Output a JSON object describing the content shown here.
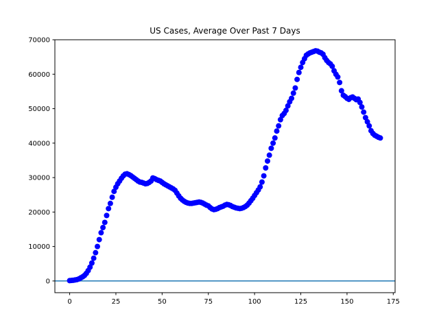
{
  "chart_data": {
    "type": "scatter",
    "title": "US Cases, Average Over Past 7 Days",
    "xlabel": "",
    "ylabel": "",
    "xlim": [
      -8,
      176
    ],
    "ylim": [
      -3400,
      70000
    ],
    "xticks": [
      0,
      25,
      50,
      75,
      100,
      125,
      150,
      175
    ],
    "yticks": [
      0,
      10000,
      20000,
      30000,
      40000,
      50000,
      60000,
      70000
    ],
    "grid": false,
    "marker_color": "#0000ff",
    "baseline": {
      "y": 0,
      "color": "#1f77b4"
    },
    "series": [
      {
        "x": [
          0,
          1,
          2,
          3,
          4,
          5,
          6,
          7,
          8,
          9,
          10,
          11,
          12,
          13,
          14,
          15,
          16,
          17,
          18,
          19,
          20,
          21,
          22,
          23,
          24,
          25,
          26,
          27,
          28,
          29,
          30,
          31,
          32,
          33,
          34,
          35,
          36,
          37,
          38,
          39,
          40,
          41,
          42,
          43,
          44,
          45,
          46,
          47,
          48,
          49,
          50,
          51,
          52,
          53,
          54,
          55,
          56,
          57,
          58,
          59,
          60,
          61,
          62,
          63,
          64,
          65,
          66,
          67,
          68,
          69,
          70,
          71,
          72,
          73,
          74,
          75,
          76,
          77,
          78,
          79,
          80,
          81,
          82,
          83,
          84,
          85,
          86,
          87,
          88,
          89,
          90,
          91,
          92,
          93,
          94,
          95,
          96,
          97,
          98,
          99,
          100,
          101,
          102,
          103,
          104,
          105,
          106,
          107,
          108,
          109,
          110,
          111,
          112,
          113,
          114,
          115,
          116,
          117,
          118,
          119,
          120,
          121,
          122,
          123,
          124,
          125,
          126,
          127,
          128,
          129,
          130,
          131,
          132,
          133,
          134,
          135,
          136,
          137,
          138,
          139,
          140,
          141,
          142,
          143,
          144,
          145,
          146,
          147,
          148,
          149,
          150,
          151,
          152,
          153,
          154,
          155,
          156,
          157,
          158,
          159,
          160,
          161,
          162,
          163,
          164,
          165,
          166,
          167,
          168
        ],
        "y": [
          100,
          150,
          200,
          300,
          400,
          600,
          900,
          1200,
          1600,
          2200,
          3000,
          4000,
          5200,
          6600,
          8200,
          10000,
          12000,
          14000,
          15500,
          17000,
          19000,
          21000,
          22500,
          24300,
          26000,
          27200,
          28200,
          29000,
          29800,
          30500,
          31000,
          31100,
          30900,
          30600,
          30200,
          29800,
          29400,
          29000,
          28700,
          28600,
          28400,
          28200,
          28300,
          28600,
          29000,
          29900,
          29700,
          29400,
          29200,
          29000,
          28600,
          28200,
          27900,
          27600,
          27300,
          27000,
          26700,
          26300,
          25500,
          24700,
          24000,
          23500,
          23100,
          22800,
          22600,
          22500,
          22500,
          22600,
          22700,
          22800,
          22900,
          22800,
          22600,
          22300,
          22000,
          21800,
          21300,
          20900,
          20700,
          20800,
          21000,
          21300,
          21500,
          21700,
          22000,
          22200,
          22100,
          21900,
          21600,
          21400,
          21200,
          21100,
          21000,
          21100,
          21300,
          21600,
          22000,
          22600,
          23300,
          24000,
          24800,
          25600,
          26400,
          27300,
          28700,
          30500,
          32800,
          34800,
          36500,
          38500,
          40000,
          41500,
          43500,
          45000,
          46800,
          48000,
          48600,
          49500,
          50800,
          52000,
          53000,
          54500,
          56000,
          58500,
          60500,
          62000,
          63400,
          64500,
          65500,
          65900,
          66200,
          66400,
          66600,
          66800,
          66700,
          66400,
          66200,
          65800,
          64800,
          64000,
          63400,
          63000,
          62300,
          61000,
          60000,
          59200,
          57600,
          55200,
          53900,
          53500,
          53000,
          52700,
          53200,
          53400,
          53000,
          52600,
          52800,
          51800,
          50500,
          49000,
          47400,
          46200,
          45000,
          43600,
          42800,
          42300,
          42000,
          41700,
          41500
        ]
      }
    ]
  }
}
